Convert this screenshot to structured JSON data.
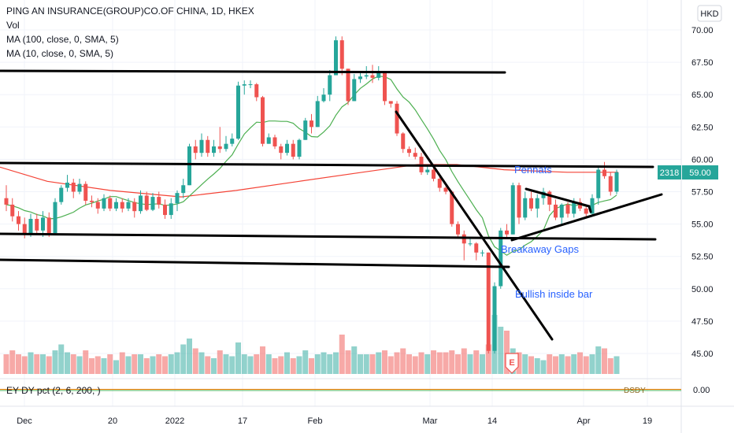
{
  "header": {
    "title": "PING AN INSURANCE(GROUP)CO.OF CHINA, 1D, HKEX",
    "vol_label": "Vol",
    "ma100_label": "MA (100, close, 0, SMA, 5)",
    "ma10_label": "MA (10, close, 0, SMA, 5)",
    "indicator_label": "EY DY pct (2, 6, 200, )",
    "currency": "HKD"
  },
  "price_badge": {
    "volume": "2318",
    "price": "59.00"
  },
  "indicator": {
    "value": "0.00",
    "right_label": "DSDY"
  },
  "annotations": [
    "Pennats",
    "Breakaway Gaps",
    "Bullish inside bar"
  ],
  "earnings_marker": "E",
  "colors": {
    "up": "#26a69a",
    "down": "#ef5350",
    "ma100": "#f44336",
    "ma10": "#4caf50",
    "annotation": "#2962ff"
  },
  "chart_data": {
    "type": "candlestick",
    "y_axis": {
      "ticks": [
        "70.00",
        "67.50",
        "65.00",
        "62.50",
        "60.00",
        "57.50",
        "55.00",
        "52.50",
        "50.00",
        "47.50",
        "45.00"
      ],
      "ylim": [
        44.2,
        70.6
      ]
    },
    "x_axis": {
      "ticks": [
        "Dec",
        "20",
        "2022",
        "17",
        "Feb",
        "Mar",
        "14",
        "Apr",
        "19"
      ]
    },
    "candles": [
      [
        57,
        56.5,
        58,
        56
      ],
      [
        56.5,
        55.6,
        57,
        55.2
      ],
      [
        55.6,
        55,
        56,
        54.5
      ],
      [
        55,
        54.3,
        55.5,
        53.9
      ],
      [
        54.3,
        55.4,
        55.8,
        54
      ],
      [
        55.4,
        54.5,
        55.8,
        54.2
      ],
      [
        54.5,
        55.5,
        56,
        54
      ],
      [
        55.5,
        54.3,
        55.9,
        54
      ],
      [
        54.3,
        56.7,
        57,
        54.2
      ],
      [
        56.7,
        57.8,
        58,
        56.5
      ],
      [
        57.8,
        58.2,
        58.8,
        57.5
      ],
      [
        58.2,
        57.5,
        58.5,
        57
      ],
      [
        57.5,
        58.1,
        58.5,
        57.3
      ],
      [
        58.1,
        56.8,
        58.3,
        56.5
      ],
      [
        56.8,
        56.7,
        57.2,
        56.3
      ],
      [
        56.7,
        56.2,
        57,
        55.8
      ],
      [
        56.2,
        57,
        57.3,
        56
      ],
      [
        57,
        56.2,
        57.2,
        56
      ],
      [
        56.2,
        56.7,
        57,
        56
      ],
      [
        56.7,
        56.2,
        57,
        55.9
      ],
      [
        56.2,
        56.7,
        57,
        56
      ],
      [
        56.7,
        56,
        57,
        55.5
      ],
      [
        56,
        57.2,
        57.6,
        55.8
      ],
      [
        57.2,
        56.1,
        57.5,
        56
      ],
      [
        56.1,
        57.1,
        57.4,
        56
      ],
      [
        57.1,
        56.5,
        57.5,
        56.2
      ],
      [
        56.5,
        55.7,
        56.9,
        55.4
      ],
      [
        55.7,
        56.6,
        57,
        55.4
      ],
      [
        56.6,
        57.4,
        57.6,
        56
      ],
      [
        57.4,
        58,
        58.5,
        57
      ],
      [
        58,
        61,
        61.2,
        58
      ],
      [
        61,
        60.5,
        61.5,
        60
      ],
      [
        60.5,
        61.5,
        62,
        60.2
      ],
      [
        61.5,
        60.5,
        61.8,
        60.2
      ],
      [
        60.5,
        61,
        61.5,
        60.2
      ],
      [
        61,
        60.8,
        62.5,
        60.5
      ],
      [
        60.8,
        61.2,
        61.8,
        60.6
      ],
      [
        61.2,
        61.6,
        62,
        61
      ],
      [
        61.6,
        65.7,
        66,
        61.5
      ],
      [
        65.7,
        65.8,
        66.1,
        65
      ],
      [
        65.8,
        65.8,
        66.1,
        65.5
      ],
      [
        65.8,
        64.8,
        65.9,
        64.5
      ],
      [
        64.8,
        61.2,
        64.9,
        61
      ],
      [
        61.2,
        61.7,
        62,
        61.2
      ],
      [
        61.7,
        61,
        61.9,
        60.8
      ],
      [
        61,
        60.5,
        61.2,
        60
      ],
      [
        60.5,
        61.2,
        61.5,
        60.3
      ],
      [
        61.2,
        60.2,
        61.5,
        60
      ],
      [
        60.2,
        61.5,
        61.6,
        60
      ],
      [
        61.5,
        63,
        63.2,
        61.5
      ],
      [
        63,
        62.5,
        63.5,
        62
      ],
      [
        62.5,
        64.5,
        64.9,
        62.5
      ],
      [
        64.5,
        65,
        65.5,
        64.4
      ],
      [
        65,
        66.5,
        66.9,
        64.5
      ],
      [
        66.5,
        69.2,
        69.5,
        66.5
      ],
      [
        69.2,
        67,
        69.5,
        66.5
      ],
      [
        67,
        64.5,
        67,
        64.2
      ],
      [
        64.5,
        66.2,
        66.6,
        64.5
      ],
      [
        66.2,
        66.4,
        66.8,
        65.9
      ],
      [
        66.4,
        66.5,
        67.2,
        66.2
      ],
      [
        66.5,
        66.3,
        67.3,
        65.9
      ],
      [
        66.3,
        66.7,
        67.2,
        66.1
      ],
      [
        66.7,
        64.5,
        66.7,
        64.2
      ],
      [
        64.5,
        64.3,
        64.5,
        64
      ],
      [
        64.3,
        62,
        64.5,
        61.8
      ],
      [
        62,
        60.8,
        62.1,
        60.5
      ],
      [
        60.8,
        60.5,
        61,
        60.2
      ],
      [
        60.5,
        60.2,
        60.9,
        60
      ],
      [
        60.2,
        59,
        60.5,
        58.8
      ],
      [
        59,
        59.2,
        59.5,
        58.8
      ],
      [
        59.2,
        58.5,
        59.5,
        58.3
      ],
      [
        58.5,
        57.8,
        58.9,
        57.5
      ],
      [
        57.8,
        57.5,
        57.9,
        57.3
      ],
      [
        57.5,
        55,
        57.6,
        54.8
      ],
      [
        55,
        54.2,
        55.2,
        54
      ],
      [
        54.2,
        53.5,
        54.5,
        52.2
      ],
      [
        53.5,
        53.5,
        54,
        53.3
      ],
      [
        53.5,
        52.8,
        53.6,
        52.2
      ],
      [
        52.8,
        52.8,
        53,
        52.5
      ],
      [
        52.8,
        45.2,
        52.8,
        45
      ],
      [
        45.2,
        50.2,
        50.5,
        45
      ],
      [
        50.2,
        54.5,
        54.7,
        50
      ],
      [
        54.5,
        54.2,
        55,
        54
      ],
      [
        54.2,
        58,
        58.2,
        54.2
      ],
      [
        58,
        55.5,
        58.2,
        55
      ],
      [
        55.5,
        57,
        57.5,
        55.3
      ],
      [
        57,
        56.2,
        57.5,
        56
      ],
      [
        56.2,
        57,
        57.3,
        55.5
      ],
      [
        57,
        57.5,
        57.8,
        56.5
      ],
      [
        57.5,
        56.5,
        57.6,
        56
      ],
      [
        56.5,
        55.5,
        56.9,
        55.3
      ],
      [
        55.5,
        56.5,
        56.6,
        55
      ],
      [
        56.5,
        55.8,
        56.7,
        55.5
      ],
      [
        55.8,
        56.7,
        57,
        55.5
      ],
      [
        56.7,
        56.2,
        57,
        56
      ],
      [
        56.2,
        55.8,
        56.5,
        55.5
      ],
      [
        55.8,
        57,
        57.3,
        55.7
      ],
      [
        57,
        59.2,
        59.5,
        56.5
      ],
      [
        59.2,
        58.7,
        59.8,
        58.5
      ],
      [
        58.7,
        57.5,
        59,
        57.2
      ],
      [
        57.5,
        59,
        59.2,
        57.3
      ]
    ],
    "volume_rel": [
      0.5,
      0.6,
      0.5,
      0.45,
      0.55,
      0.5,
      0.5,
      0.45,
      0.6,
      0.75,
      0.55,
      0.5,
      0.45,
      0.6,
      0.4,
      0.45,
      0.4,
      0.5,
      0.35,
      0.55,
      0.45,
      0.5,
      0.5,
      0.4,
      0.45,
      0.5,
      0.45,
      0.5,
      0.55,
      0.75,
      0.9,
      0.65,
      0.55,
      0.45,
      0.4,
      0.6,
      0.5,
      0.45,
      0.8,
      0.5,
      0.45,
      0.5,
      0.7,
      0.5,
      0.4,
      0.45,
      0.55,
      0.4,
      0.45,
      0.6,
      0.4,
      0.5,
      0.55,
      0.5,
      0.55,
      1.0,
      0.6,
      0.7,
      0.5,
      0.5,
      0.5,
      0.55,
      0.6,
      0.45,
      0.55,
      0.65,
      0.5,
      0.45,
      0.55,
      0.5,
      0.6,
      0.55,
      0.55,
      0.6,
      0.5,
      0.65,
      0.5,
      0.6,
      0.5,
      0.75,
      1.5,
      1.2,
      1.1,
      0.65,
      0.55,
      0.5,
      0.45,
      0.4,
      0.35,
      0.5,
      0.45,
      0.5,
      0.45,
      0.5,
      0.55,
      0.45,
      0.5,
      0.7,
      0.65,
      0.4,
      0.45
    ]
  }
}
